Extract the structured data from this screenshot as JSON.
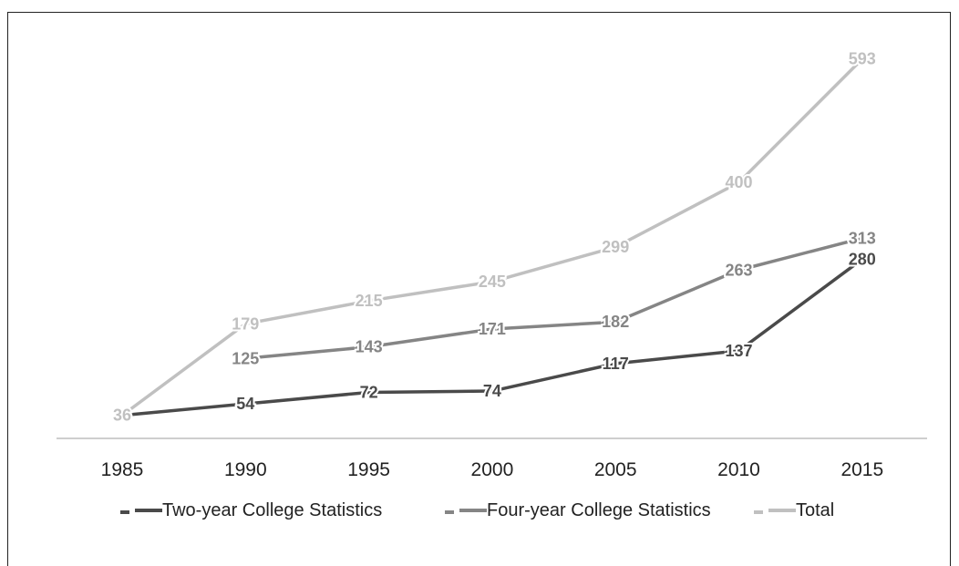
{
  "chart_data": {
    "type": "line",
    "title": "",
    "xlabel": "",
    "ylabel": "",
    "x": [
      "1985",
      "1990",
      "1995",
      "2000",
      "2005",
      "2010",
      "2015"
    ],
    "ylim": [
      0,
      650
    ],
    "grid": false,
    "legend_position": "bottom",
    "series": [
      {
        "name": "Two-year  College Statistics",
        "color": "#4a4a4a",
        "values": [
          36,
          54,
          72,
          74,
          117,
          137,
          280
        ]
      },
      {
        "name": "Four-year College Statistics",
        "color": "#858585",
        "values": [
          null,
          125,
          143,
          171,
          182,
          263,
          313
        ]
      },
      {
        "name": "Total",
        "color": "#c0c0c0",
        "values": [
          36,
          179,
          215,
          245,
          299,
          400,
          593
        ]
      }
    ]
  }
}
